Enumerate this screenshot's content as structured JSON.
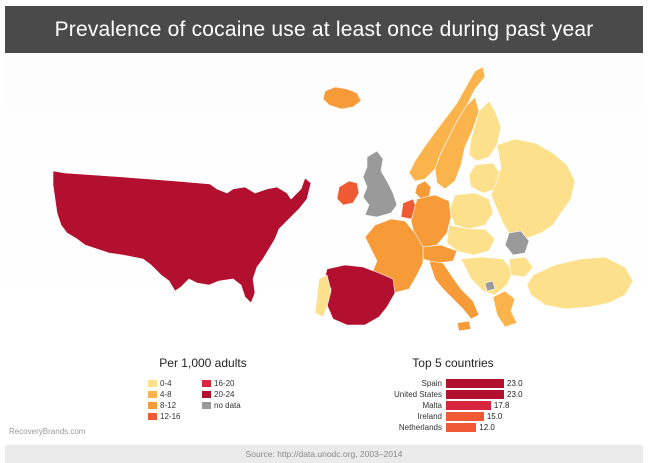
{
  "title": "Prevalence of cocaine use at least once during past year",
  "legend": {
    "title": "Per 1,000 adults",
    "items": [
      {
        "label": "0-4",
        "color": "#fde08c"
      },
      {
        "label": "16-20",
        "color": "#d7263d"
      },
      {
        "label": "4-8",
        "color": "#fbb44c"
      },
      {
        "label": "20-24",
        "color": "#b30f2e"
      },
      {
        "label": "8-12",
        "color": "#f79a38"
      },
      {
        "label": "no data",
        "color": "#9a9a9a"
      },
      {
        "label": "12-16",
        "color": "#ef5a34"
      }
    ]
  },
  "top5": {
    "title": "Top 5 countries",
    "max": 23.0,
    "rows": [
      {
        "name": "Spain",
        "value": "23.0",
        "num": 23.0,
        "color": "#b30f2e"
      },
      {
        "name": "United States",
        "value": "23.0",
        "num": 23.0,
        "color": "#b30f2e"
      },
      {
        "name": "Malta",
        "value": "17.8",
        "num": 17.8,
        "color": "#d7263d"
      },
      {
        "name": "Ireland",
        "value": "15.0",
        "num": 15.0,
        "color": "#ef5a34"
      },
      {
        "name": "Netherlands",
        "value": "12.0",
        "num": 12.0,
        "color": "#ef5a34"
      }
    ]
  },
  "brand": "RecoveryBrands.com",
  "source": "Source: http://data.unodc.org, 2003–2014"
}
